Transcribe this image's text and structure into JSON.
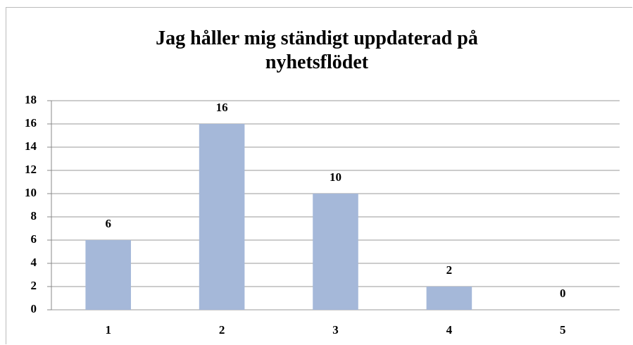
{
  "chart_data": {
    "type": "bar",
    "title": "Jag håller mig ständigt uppdaterad på nyhetsflödet",
    "categories": [
      "1",
      "2",
      "3",
      "4",
      "5"
    ],
    "values": [
      6,
      16,
      10,
      2,
      0
    ],
    "color": "#a5b8d9",
    "ylim": [
      0,
      18
    ],
    "yticks": [
      0,
      2,
      4,
      6,
      8,
      10,
      12,
      14,
      16,
      18
    ],
    "grid": true
  }
}
